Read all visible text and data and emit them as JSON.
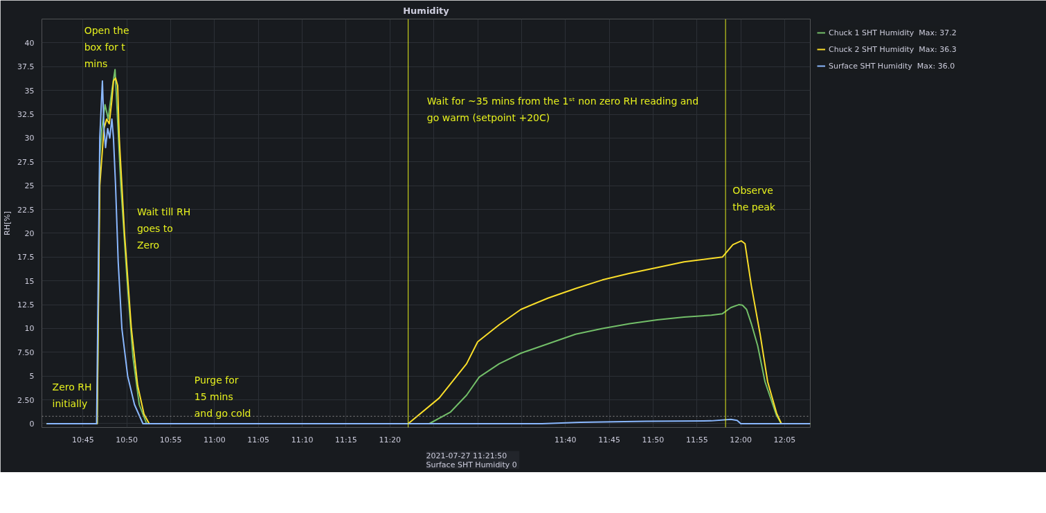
{
  "chart_data": {
    "type": "line",
    "title": "Humidity",
    "ylabel": "RH[%]",
    "xlim": [
      10.672,
      12.132
    ],
    "ylim": [
      -0.4,
      42.5
    ],
    "xticks": [
      {
        "value": 10.75,
        "label": "10:45"
      },
      {
        "value": 10.8333,
        "label": "10:50"
      },
      {
        "value": 10.9167,
        "label": "10:55"
      },
      {
        "value": 11.0,
        "label": "11:00"
      },
      {
        "value": 11.0833,
        "label": "11:05"
      },
      {
        "value": 11.1667,
        "label": "11:10"
      },
      {
        "value": 11.25,
        "label": "11:15"
      },
      {
        "value": 11.3333,
        "label": "11:20"
      },
      {
        "value": 11.4167,
        "label": null
      },
      {
        "value": 11.5,
        "label": null
      },
      {
        "value": 11.5833,
        "label": null
      },
      {
        "value": 11.6667,
        "label": "11:40"
      },
      {
        "value": 11.75,
        "label": "11:45"
      },
      {
        "value": 11.8333,
        "label": "11:50"
      },
      {
        "value": 11.9167,
        "label": "11:55"
      },
      {
        "value": 12.0,
        "label": "12:00"
      },
      {
        "value": 12.0833,
        "label": "12:05"
      }
    ],
    "yticks": [
      0,
      {
        "value": 2.5,
        "label": "2.50"
      },
      5,
      {
        "value": 7.5,
        "label": "7.50"
      },
      10,
      12.5,
      15,
      17.5,
      20,
      22.5,
      25,
      27.5,
      30,
      32.5,
      35,
      37.5,
      40
    ],
    "grid": true,
    "legend": "top right",
    "marker": "none",
    "line_style": "solid",
    "series": [
      {
        "name": "Chuck 1 SHT Humidity  Max: 37.2",
        "color": "#73bf69",
        "x": [
          10.681,
          10.777,
          10.782,
          10.786,
          10.792,
          10.798,
          10.805,
          10.811,
          10.814,
          10.822,
          10.834,
          10.845,
          10.857,
          10.871,
          11.408,
          11.448,
          11.479,
          11.503,
          11.541,
          11.582,
          11.634,
          11.686,
          11.737,
          11.789,
          11.841,
          11.892,
          11.944,
          11.965,
          11.981,
          11.996,
          12.003,
          12.011,
          12.02,
          12.032,
          12.046,
          12.068,
          12.077,
          12.132
        ],
        "values": [
          0,
          0,
          28,
          31,
          33.5,
          32,
          35,
          37.2,
          34,
          25,
          15,
          7,
          2,
          0,
          0,
          1.2,
          3.0,
          4.9,
          6.3,
          7.4,
          8.4,
          9.4,
          10.0,
          10.5,
          10.9,
          11.2,
          11.4,
          11.55,
          12.2,
          12.5,
          12.45,
          12.0,
          10.5,
          8.2,
          4.4,
          0.85,
          0,
          0
        ]
      },
      {
        "name": "Chuck 2 SHT Humidity  Max: 36.3",
        "color": "#fade2a",
        "x": [
          10.681,
          10.777,
          10.782,
          10.79,
          10.795,
          10.8,
          10.805,
          10.808,
          10.812,
          10.816,
          10.819,
          10.829,
          10.842,
          10.854,
          10.866,
          10.876,
          11.368,
          11.427,
          11.479,
          11.5,
          11.541,
          11.582,
          11.634,
          11.686,
          11.737,
          11.789,
          11.841,
          11.892,
          11.965,
          11.985,
          12.001,
          12.008,
          12.02,
          12.037,
          12.051,
          12.068,
          12.077,
          12.132
        ],
        "values": [
          0,
          0,
          25,
          31,
          32,
          31.5,
          34,
          36,
          36.3,
          35.5,
          30,
          20,
          10,
          4,
          1,
          0,
          0,
          2.7,
          6.3,
          8.6,
          10.4,
          12.0,
          13.2,
          14.2,
          15.1,
          15.8,
          16.4,
          17.0,
          17.5,
          18.8,
          19.2,
          18.9,
          14.5,
          9.3,
          4.4,
          1.1,
          0,
          0
        ]
      },
      {
        "name": "Surface SHT Humidity  Max: 36.0",
        "color": "#8ab8ff",
        "x": [
          10.681,
          10.776,
          10.782,
          10.787,
          10.79,
          10.793,
          10.797,
          10.801,
          10.805,
          10.808,
          10.812,
          10.817,
          10.824,
          10.835,
          10.848,
          10.864,
          11.622,
          11.696,
          11.82,
          11.944,
          11.981,
          11.993,
          12.0,
          12.132
        ],
        "values": [
          0,
          0,
          30,
          36.0,
          31,
          29,
          31,
          30,
          32,
          30,
          25,
          17,
          10,
          5,
          2,
          0,
          0,
          0.15,
          0.25,
          0.3,
          0.45,
          0.35,
          0,
          0
        ]
      }
    ],
    "ref_lines": [
      {
        "axis": "x",
        "value": 11.368,
        "label": null,
        "color": "#e6f01e",
        "line_style": "solid"
      },
      {
        "axis": "x",
        "value": 11.971,
        "label": null,
        "color": "#e6f01e",
        "line_style": "solid"
      },
      {
        "axis": "y",
        "value": 0.78,
        "label": null,
        "color": "#8e8e8e",
        "line_style": "dotted"
      }
    ],
    "annotations": [
      "Open the\nbox for t\nmins",
      "Wait till RH\ngoes to\nZero",
      "Zero RH\ninitially",
      "Purge for\n15 mins\nand go cold",
      "Wait for ~35 mins from the 1ˢᵗ non zero RH reading  and\ngo warm (setpoint +20C)",
      "Observe\nthe peak",
      "2021-07-27 11:21:50\nSurface SHT Humidity  0"
    ]
  }
}
